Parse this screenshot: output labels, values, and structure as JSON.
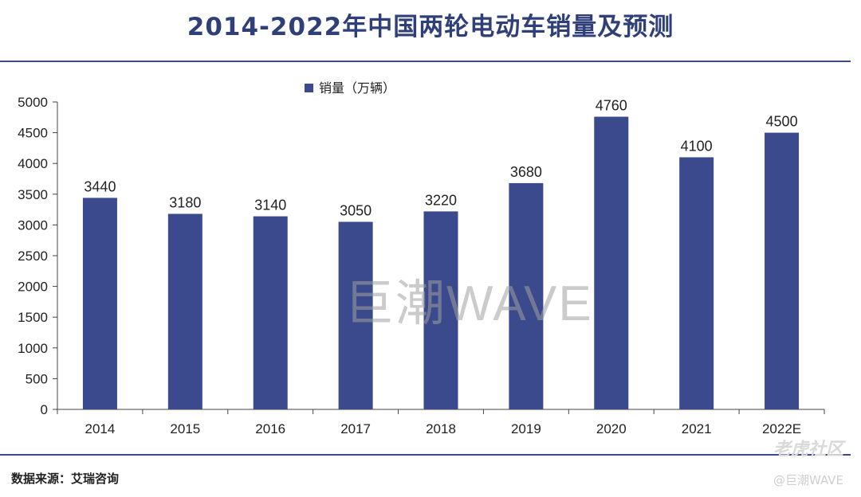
{
  "title": "2014-2022年中国两轮电动车销量及预测",
  "source": "数据来源：艾瑞咨询",
  "watermarks": {
    "center": "巨潮WAVE",
    "brand": "老虎社区",
    "handle": "@巨潮WAVE"
  },
  "colors": {
    "bar": "#3b4a8c",
    "rule": "#3b4a85",
    "title": "#2f3f78"
  },
  "chart_data": {
    "type": "bar",
    "categories": [
      "2014",
      "2015",
      "2016",
      "2017",
      "2018",
      "2019",
      "2020",
      "2021",
      "2022E"
    ],
    "series": [
      {
        "name": "销量（万辆）",
        "values": [
          3440,
          3180,
          3140,
          3050,
          3220,
          3680,
          4760,
          4100,
          4500
        ]
      }
    ],
    "ylim": [
      0,
      5000
    ],
    "yticks": [
      0,
      500,
      1000,
      1500,
      2000,
      2500,
      3000,
      3500,
      4000,
      4500,
      5000
    ],
    "data_labels": true,
    "legend_position": "top-center",
    "grid": false
  }
}
